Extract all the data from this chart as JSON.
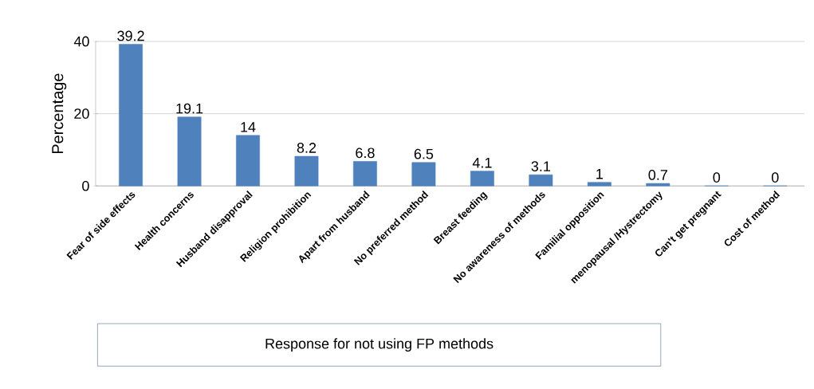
{
  "chart_data": {
    "type": "bar",
    "xlabel": "Response for not using FP methods",
    "ylabel": "Percentage",
    "categories": [
      "Fear of side effects",
      "Health concerns",
      "Husband disapproval",
      "Religion prohibition",
      "Apart from husband",
      "No preferred method",
      "Breast feeding",
      "No awareness of methods",
      "Familial opposition",
      "menopausal /Hystrectomy",
      "Can't get pregnant",
      "Cost of method"
    ],
    "values": [
      39.2,
      19.1,
      14,
      8.2,
      6.8,
      6.5,
      4.1,
      3.1,
      1,
      0.7,
      0,
      0
    ],
    "color": "#4f81bd",
    "ylim": [
      0,
      40
    ],
    "yticks": [
      0,
      20,
      40
    ],
    "grid": "y",
    "data_labels": true
  }
}
